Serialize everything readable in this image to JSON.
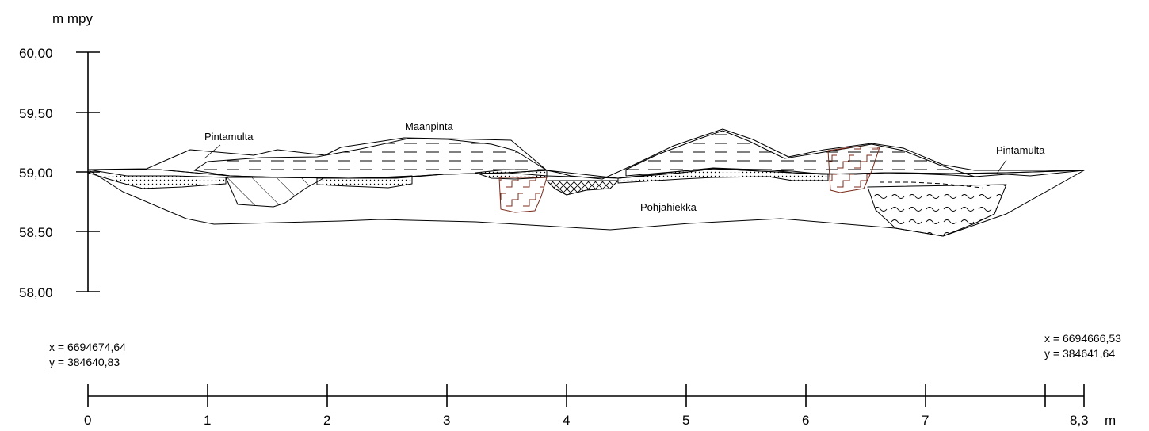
{
  "title": "",
  "y_axis": {
    "unit": "m mpy",
    "ticks": [
      "60,00",
      "59,50",
      "59,00",
      "58,50",
      "58,00"
    ]
  },
  "x_axis": {
    "unit": "m",
    "ticks": [
      "0",
      "1",
      "2",
      "3",
      "4",
      "5",
      "6",
      "7",
      "8,3"
    ]
  },
  "layers": {
    "pintamulta_left": "Pintamulta",
    "maanpinta": "Maanpinta",
    "pintamulta_right": "Pintamulta",
    "pohjahiekka": "Pohjahiekka"
  },
  "coordinates": {
    "start": {
      "x": "x = 6694674,64",
      "y": "y = 384640,83"
    },
    "end": {
      "x": "x = 6694666,53",
      "y": "y = 384641,64"
    }
  },
  "colors": {
    "ink": "#000000",
    "brick": "#7a2a1a"
  }
}
